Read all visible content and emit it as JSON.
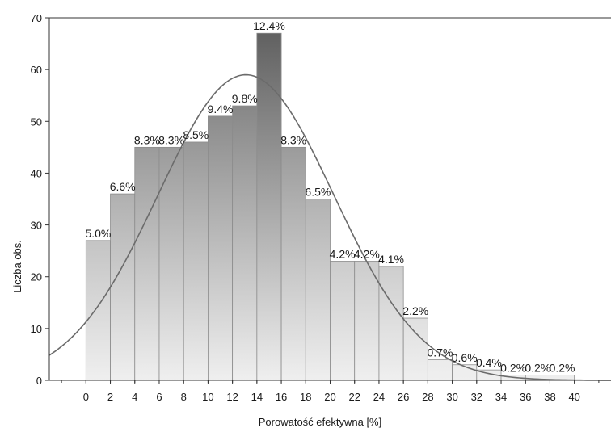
{
  "chart_data": {
    "type": "bar",
    "title": "",
    "xlabel": "Porowatość efektywna [%]",
    "ylabel": "Liczba obs.",
    "bin_edges": [
      0,
      2,
      4,
      6,
      8,
      10,
      12,
      14,
      16,
      18,
      20,
      22,
      24,
      26,
      28,
      30,
      32,
      34,
      36,
      38,
      40
    ],
    "values": [
      27,
      36,
      45,
      45,
      46,
      51,
      53,
      67,
      45,
      35,
      23,
      23,
      22,
      12,
      4,
      3,
      2,
      1,
      1,
      1
    ],
    "data_labels": [
      "5.0%",
      "6.6%",
      "8.3%",
      "8.3%",
      "8.5%",
      "9.4%",
      "9.8%",
      "12.4%",
      "8.3%",
      "6.5%",
      "4.2%",
      "4.2%",
      "4.1%",
      "2.2%",
      "0.7%",
      "0.6%",
      "0.4%",
      "0.2%",
      "0.2%",
      "0.2%"
    ],
    "x_ticks": [
      "0",
      "2",
      "4",
      "6",
      "8",
      "10",
      "12",
      "14",
      "16",
      "18",
      "20",
      "22",
      "24",
      "26",
      "28",
      "30",
      "32",
      "34",
      "36",
      "38",
      "40"
    ],
    "y_ticks": [
      "0",
      "10",
      "20",
      "30",
      "40",
      "50",
      "60",
      "70"
    ],
    "xlim": [
      -3,
      43
    ],
    "ylim": [
      0,
      70
    ],
    "normal_curve": {
      "mean": 13.1,
      "sd": 7.2,
      "peak": 59
    },
    "grid": false,
    "legend": "none",
    "colors": {
      "bar_light": "#efefef",
      "bar_dark": "#5a5a5a",
      "bar_edge": "#8c8c8c",
      "curve": "#6b6b6b",
      "axis": "#333333"
    }
  }
}
